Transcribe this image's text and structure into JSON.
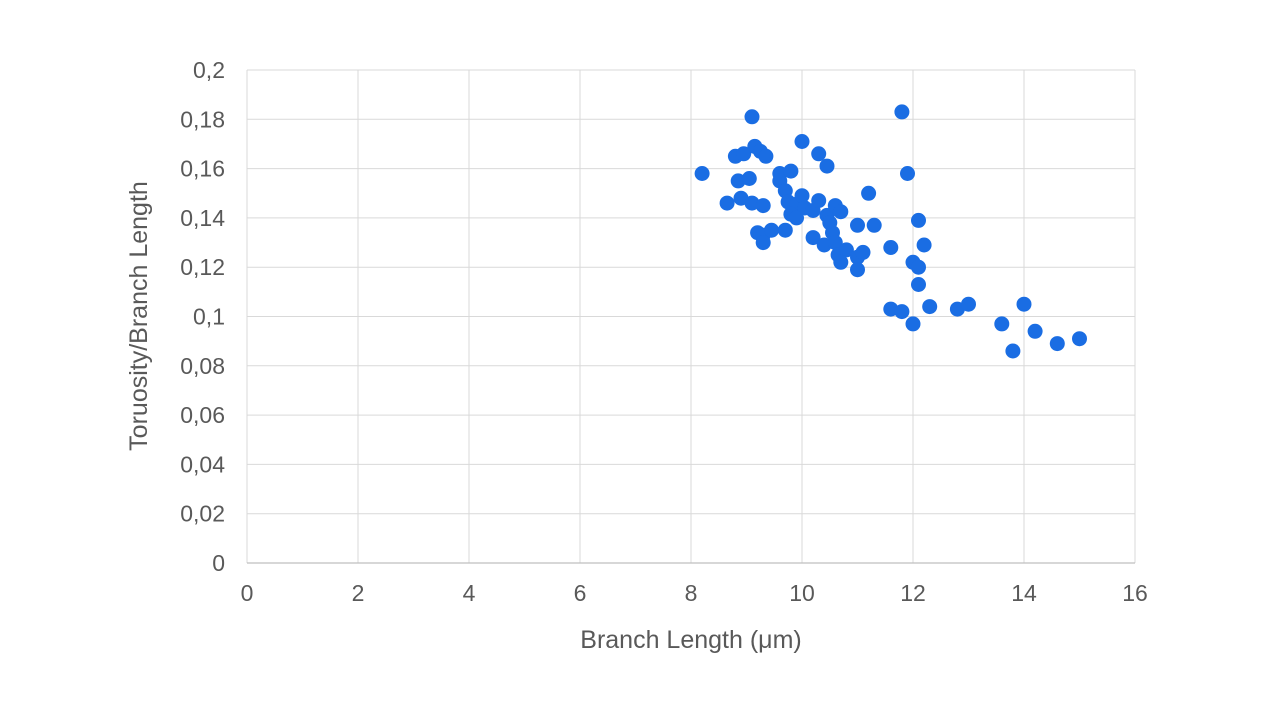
{
  "chart_data": {
    "type": "scatter",
    "title": "",
    "xlabel": "Branch Length (μm)",
    "ylabel": "Toruosity/Branch Length",
    "xlim": [
      0,
      16
    ],
    "ylim": [
      0,
      0.2
    ],
    "x_ticks": [
      0,
      2,
      4,
      6,
      8,
      10,
      12,
      14,
      16
    ],
    "y_ticks": [
      0,
      0.02,
      0.04,
      0.06,
      0.08,
      0.1,
      0.12,
      0.14,
      0.16,
      0.18,
      0.2
    ],
    "x_tick_labels": [
      "0",
      "2",
      "4",
      "6",
      "8",
      "10",
      "12",
      "14",
      "16"
    ],
    "y_tick_labels": [
      "0",
      "0,02",
      "0,04",
      "0,06",
      "0,08",
      "0,1",
      "0,12",
      "0,14",
      "0,16",
      "0,18",
      "0,2"
    ],
    "decimal_separator": ",",
    "grid": true,
    "legend_position": "none",
    "marker_color": "#1A6DE3",
    "marker_radius_px": 7.5,
    "points": [
      [
        8.2,
        0.158
      ],
      [
        9.1,
        0.181
      ],
      [
        11.8,
        0.183
      ],
      [
        10.0,
        0.171
      ],
      [
        8.8,
        0.165
      ],
      [
        8.95,
        0.166
      ],
      [
        9.15,
        0.169
      ],
      [
        9.25,
        0.167
      ],
      [
        9.35,
        0.165
      ],
      [
        10.3,
        0.166
      ],
      [
        10.45,
        0.161
      ],
      [
        11.9,
        0.158
      ],
      [
        11.2,
        0.15
      ],
      [
        8.85,
        0.155
      ],
      [
        9.05,
        0.156
      ],
      [
        9.6,
        0.158
      ],
      [
        9.8,
        0.159
      ],
      [
        9.6,
        0.155
      ],
      [
        9.7,
        0.151
      ],
      [
        8.65,
        0.146
      ],
      [
        8.9,
        0.148
      ],
      [
        9.1,
        0.146
      ],
      [
        9.3,
        0.145
      ],
      [
        9.75,
        0.1465
      ],
      [
        9.9,
        0.1455
      ],
      [
        9.8,
        0.1415
      ],
      [
        9.9,
        0.14
      ],
      [
        10.0,
        0.149
      ],
      [
        10.05,
        0.144
      ],
      [
        10.2,
        0.143
      ],
      [
        10.3,
        0.147
      ],
      [
        10.45,
        0.141
      ],
      [
        10.5,
        0.138
      ],
      [
        10.6,
        0.145
      ],
      [
        10.7,
        0.1425
      ],
      [
        11.0,
        0.137
      ],
      [
        11.3,
        0.137
      ],
      [
        12.1,
        0.139
      ],
      [
        9.2,
        0.134
      ],
      [
        9.3,
        0.133
      ],
      [
        9.3,
        0.13
      ],
      [
        9.45,
        0.135
      ],
      [
        9.7,
        0.135
      ],
      [
        10.2,
        0.132
      ],
      [
        10.4,
        0.129
      ],
      [
        10.55,
        0.134
      ],
      [
        10.6,
        0.13
      ],
      [
        10.65,
        0.125
      ],
      [
        10.8,
        0.127
      ],
      [
        10.7,
        0.122
      ],
      [
        11.0,
        0.124
      ],
      [
        11.1,
        0.126
      ],
      [
        11.0,
        0.119
      ],
      [
        11.6,
        0.128
      ],
      [
        12.2,
        0.129
      ],
      [
        12.0,
        0.122
      ],
      [
        12.1,
        0.12
      ],
      [
        12.1,
        0.113
      ],
      [
        11.6,
        0.103
      ],
      [
        11.8,
        0.102
      ],
      [
        12.0,
        0.097
      ],
      [
        12.3,
        0.104
      ],
      [
        12.8,
        0.103
      ],
      [
        13.0,
        0.105
      ],
      [
        13.6,
        0.097
      ],
      [
        14.0,
        0.105
      ],
      [
        14.2,
        0.094
      ],
      [
        13.8,
        0.086
      ],
      [
        14.6,
        0.089
      ],
      [
        15.0,
        0.091
      ]
    ]
  },
  "styles": {
    "background": "#FFFFFF",
    "grid_color": "#D9D9D9",
    "axis_color": "#BFBFBF",
    "text_color": "#595959"
  }
}
